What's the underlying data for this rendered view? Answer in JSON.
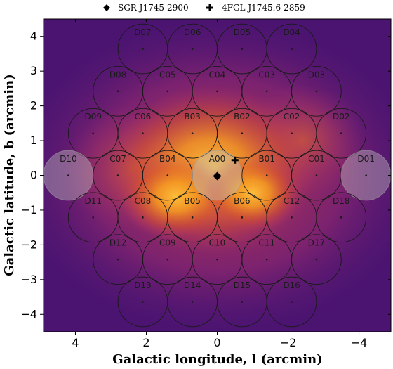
{
  "chart_data": {
    "type": "scatter",
    "title": "",
    "xlabel": "Galactic longitude, l (arcmin)",
    "ylabel": "Galactic latitude, b (arcmin)",
    "xlim": [
      4.9,
      -4.9
    ],
    "ylim": [
      -4.5,
      4.5
    ],
    "xticks": [
      4,
      2,
      0,
      -2,
      -4
    ],
    "xtick_labels": [
      "4",
      "2",
      "0",
      "−2",
      "−4"
    ],
    "yticks": [
      4,
      3,
      2,
      1,
      0,
      -1,
      -2,
      -3,
      -4
    ],
    "ytick_labels": [
      "4",
      "3",
      "2",
      "1",
      "0",
      "−1",
      "−2",
      "−3",
      "−4"
    ],
    "region_radius": 0.7,
    "legend": {
      "placement": "top-outside",
      "entries": [
        {
          "label": "SGR J1745-2900",
          "marker": "diamond"
        },
        {
          "label": "4FGL J1745.6-2859",
          "marker": "plus"
        }
      ]
    },
    "sources": [
      {
        "name": "SGR J1745-2900",
        "marker": "diamond",
        "l": 0.0,
        "b": -0.02
      },
      {
        "name": "4FGL J1745.6-2859",
        "marker": "plus",
        "l": -0.5,
        "b": 0.44
      }
    ],
    "regions": [
      {
        "name": "D07",
        "l": 2.1,
        "b": 3.64,
        "highlight": false
      },
      {
        "name": "D06",
        "l": 0.7,
        "b": 3.64,
        "highlight": false
      },
      {
        "name": "D05",
        "l": -0.7,
        "b": 3.64,
        "highlight": false
      },
      {
        "name": "D04",
        "l": -2.1,
        "b": 3.64,
        "highlight": false
      },
      {
        "name": "D08",
        "l": 2.8,
        "b": 2.42,
        "highlight": false
      },
      {
        "name": "C05",
        "l": 1.4,
        "b": 2.42,
        "highlight": false
      },
      {
        "name": "C04",
        "l": 0.0,
        "b": 2.42,
        "highlight": false
      },
      {
        "name": "C03",
        "l": -1.4,
        "b": 2.42,
        "highlight": false
      },
      {
        "name": "D03",
        "l": -2.8,
        "b": 2.42,
        "highlight": false
      },
      {
        "name": "D09",
        "l": 3.5,
        "b": 1.21,
        "highlight": false
      },
      {
        "name": "C06",
        "l": 2.1,
        "b": 1.21,
        "highlight": false
      },
      {
        "name": "B03",
        "l": 0.7,
        "b": 1.21,
        "highlight": false
      },
      {
        "name": "B02",
        "l": -0.7,
        "b": 1.21,
        "highlight": false
      },
      {
        "name": "C02",
        "l": -2.1,
        "b": 1.21,
        "highlight": false
      },
      {
        "name": "D02",
        "l": -3.5,
        "b": 1.21,
        "highlight": false
      },
      {
        "name": "D10",
        "l": 4.2,
        "b": 0.0,
        "highlight": true
      },
      {
        "name": "C07",
        "l": 2.8,
        "b": 0.0,
        "highlight": false
      },
      {
        "name": "B04",
        "l": 1.4,
        "b": 0.0,
        "highlight": false
      },
      {
        "name": "A00",
        "l": 0.0,
        "b": 0.0,
        "highlight": true
      },
      {
        "name": "B01",
        "l": -1.4,
        "b": 0.0,
        "highlight": false
      },
      {
        "name": "C01",
        "l": -2.8,
        "b": 0.0,
        "highlight": false
      },
      {
        "name": "D01",
        "l": -4.2,
        "b": 0.0,
        "highlight": true
      },
      {
        "name": "D11",
        "l": 3.5,
        "b": -1.21,
        "highlight": false
      },
      {
        "name": "C08",
        "l": 2.1,
        "b": -1.21,
        "highlight": false
      },
      {
        "name": "B05",
        "l": 0.7,
        "b": -1.21,
        "highlight": false
      },
      {
        "name": "B06",
        "l": -0.7,
        "b": -1.21,
        "highlight": false
      },
      {
        "name": "C12",
        "l": -2.1,
        "b": -1.21,
        "highlight": false
      },
      {
        "name": "D18",
        "l": -3.5,
        "b": -1.21,
        "highlight": false
      },
      {
        "name": "D12",
        "l": 2.8,
        "b": -2.42,
        "highlight": false
      },
      {
        "name": "C09",
        "l": 1.4,
        "b": -2.42,
        "highlight": false
      },
      {
        "name": "C10",
        "l": 0.0,
        "b": -2.42,
        "highlight": false
      },
      {
        "name": "C11",
        "l": -1.4,
        "b": -2.42,
        "highlight": false
      },
      {
        "name": "D17",
        "l": -2.8,
        "b": -2.42,
        "highlight": false
      },
      {
        "name": "D13",
        "l": 2.1,
        "b": -3.64,
        "highlight": false
      },
      {
        "name": "D14",
        "l": 0.7,
        "b": -3.64,
        "highlight": false
      },
      {
        "name": "D15",
        "l": -0.7,
        "b": -3.64,
        "highlight": false
      },
      {
        "name": "D16",
        "l": -2.1,
        "b": -3.64,
        "highlight": false
      }
    ],
    "background": {
      "colormap": "inferno",
      "colors": [
        "#3a0f5e",
        "#6b1f7a",
        "#b8356b",
        "#e8601f",
        "#f8a21a"
      ]
    },
    "grid": false
  }
}
